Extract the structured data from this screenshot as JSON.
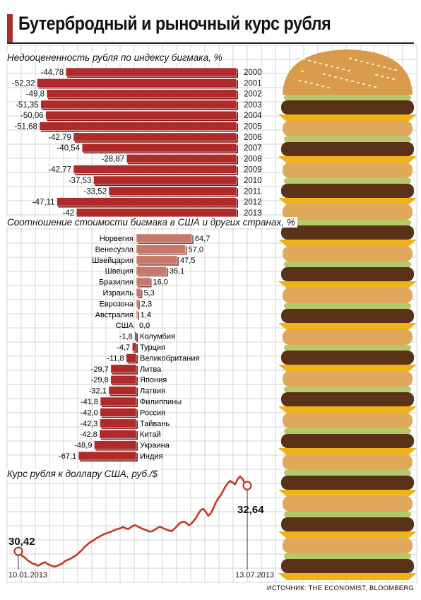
{
  "title": "Бутербродный и рыночный курс рубля",
  "source": "ИСТОЧНИК: THE ECONOMIST, BLOOMBERG",
  "colors": {
    "bar": "#b02a2a",
    "bar_light": "#c8786b",
    "bar_dark": "#7a1a1a",
    "line": "#c0392b",
    "grid": "#c9c9c9"
  },
  "chart_data": [
    {
      "type": "bar",
      "title": "Недооцененность рубля по индексу бигмака, %",
      "categories": [
        "2000",
        "2001",
        "2002",
        "2003",
        "2004",
        "2005",
        "2006",
        "2007",
        "2008",
        "2009",
        "2010",
        "2011",
        "2012",
        "2013"
      ],
      "values": [
        -44.78,
        -52.32,
        -49.8,
        -51.35,
        -50.06,
        -51.68,
        -42.79,
        -40.54,
        -28.87,
        -42.77,
        -37.53,
        -33.52,
        -47.11,
        -42
      ],
      "value_labels": [
        "-44,78",
        "-52,32",
        "-49,8",
        "-51,35",
        "-50,06",
        "-51,68",
        "-42,79",
        "-40,54",
        "-28,87",
        "-42,77",
        "-37,53",
        "-33,52",
        "-47,11",
        "-42"
      ],
      "orientation": "horizontal"
    },
    {
      "type": "bar",
      "title": "Соотношение стоимости бигмака в США и других странах, %",
      "categories": [
        "Норвегия",
        "Венесуэла",
        "Швейцария",
        "Швеция",
        "Бразилия",
        "Израиль",
        "Еврозона",
        "Австралия",
        "США",
        "Колумбия",
        "Турция",
        "Великобритания",
        "Литва",
        "Япония",
        "Латвия",
        "Филиппины",
        "Россия",
        "Тайвань",
        "Китай",
        "Украина",
        "Индия"
      ],
      "values": [
        64.7,
        57.0,
        47.5,
        35.1,
        16.0,
        5.3,
        2.3,
        1.4,
        0.0,
        -1.8,
        -4.7,
        -11.8,
        -29.7,
        -29.8,
        -32.1,
        -41.8,
        -42.0,
        -42.3,
        -42.8,
        -48.9,
        -67.1
      ],
      "value_labels": [
        "64,7",
        "57,0",
        "47,5",
        "35,1",
        "16,0",
        "5,3",
        "2,3",
        "1,4",
        "0,0",
        "-1,8",
        "-4,7",
        "-11,8",
        "-29,7",
        "-29,8",
        "-32,1",
        "-41,8",
        "-42,0",
        "-42,3",
        "-42,8",
        "-48,9",
        "-67,1"
      ],
      "orientation": "horizontal"
    },
    {
      "type": "line",
      "title": "Курс рубля к доллару США, руб./$",
      "x_start": "10.01.2013",
      "x_end": "13.07.2013",
      "start_value": 30.42,
      "end_value": 32.64,
      "start_label": "30,42",
      "end_label": "32,64",
      "values": [
        30.42,
        30.3,
        30.25,
        30.18,
        30.1,
        30.05,
        30.0,
        29.98,
        29.93,
        29.97,
        30.02,
        30.05,
        29.99,
        29.95,
        29.92,
        29.9,
        29.93,
        29.97,
        30.0,
        30.08,
        30.12,
        30.15,
        30.2,
        30.25,
        30.3,
        30.38,
        30.45,
        30.55,
        30.62,
        30.7,
        30.75,
        30.8,
        30.86,
        30.9,
        30.95,
        30.99,
        31.02,
        31.05,
        31.08,
        31.12,
        31.15,
        31.18,
        31.2,
        31.24,
        31.2,
        31.17,
        31.22,
        31.28,
        31.3,
        31.26,
        31.22,
        31.18,
        31.15,
        31.12,
        31.08,
        31.1,
        31.15,
        31.2,
        31.25,
        31.22,
        31.18,
        31.15,
        31.12,
        31.1,
        31.18,
        31.25,
        31.35,
        31.4,
        31.42,
        31.38,
        31.3,
        31.35,
        31.45,
        31.55,
        31.7,
        31.82,
        31.85,
        31.75,
        31.62,
        31.7,
        31.85,
        32.05,
        32.2,
        32.3,
        32.45,
        32.6,
        32.72,
        32.8,
        32.75,
        32.68,
        32.85,
        32.95,
        32.88,
        32.72,
        32.64
      ]
    }
  ]
}
